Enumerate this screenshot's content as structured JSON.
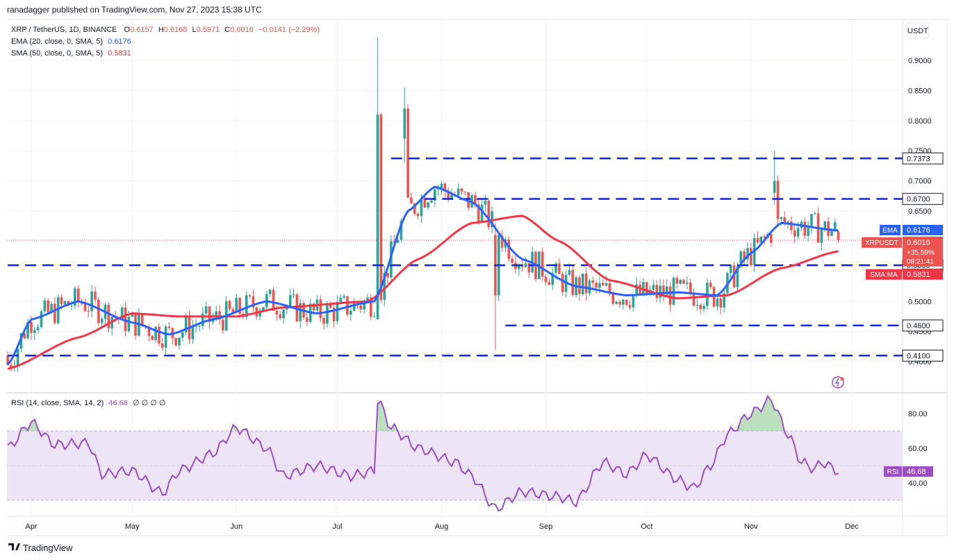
{
  "header": {
    "publisher_line": "ranadagger published on TradingView.com, Nov 27, 2023 15:38 UTC"
  },
  "legend": {
    "symbol": "XRP / TetherUS, 1D, BINANCE",
    "o_label": "O",
    "o_value": "0.6157",
    "h_label": "H",
    "h_value": "0.6168",
    "l_label": "L",
    "l_value": "0.5971",
    "c_label": "C",
    "c_value": "0.6016",
    "change": "−0.0141 (−2.29%)",
    "ema_label": "EMA (20, close, 0, SMA, 5)",
    "ema_value": "0.6176",
    "sma_label": "SMA (50, close, 0, SMA, 5)",
    "sma_value": "0.5831",
    "rsi_label": "RSI (14, close, SMA, 14, 2)",
    "rsi_value": "46.68",
    "rsi_extra": "∅ ∅ ∅ ∅"
  },
  "currency_button": "USDT",
  "footer_logo": "TradingView",
  "badges": {
    "ema_tag": "EMA",
    "ema_value": "0.6176",
    "price_tag": "XRPUSDT",
    "price_value": "0.6016",
    "price_change": "+35.59%",
    "countdown": "08:21:41",
    "sma_tag": "SMA:MA",
    "sma_value": "0.5831",
    "rsi_tag": "RSI",
    "rsi_value": "46.68"
  },
  "colors": {
    "up": "#26a69a",
    "down": "#ef5350",
    "ema": "#2962ff",
    "sma": "#f23645",
    "rsi": "#9c4dc4",
    "levels": "#1023e8",
    "rsi_band": "#ede4f5"
  },
  "chart_data": [
    {
      "type": "candlestick",
      "title": "XRP / TetherUS, 1D, BINANCE",
      "x_ticks": [
        "Apr",
        "May",
        "Jun",
        "Jul",
        "Aug",
        "Sep",
        "Oct",
        "Nov",
        "Dec"
      ],
      "y_ticks": [
        "0.9000",
        "0.8500",
        "0.8000",
        "0.7500",
        "0.7000",
        "0.6500",
        "0.6000",
        "0.5500",
        "0.5000",
        "0.4500",
        "0.4000"
      ],
      "ylim": [
        0.39,
        0.93
      ],
      "horizontal_levels": [
        {
          "value": 0.7373,
          "label": "0.7373"
        },
        {
          "value": 0.67,
          "label": "0.6700"
        },
        {
          "value": 0.56,
          "label": "0.5600"
        },
        {
          "value": 0.46,
          "label": "0.4600"
        },
        {
          "value": 0.41,
          "label": "0.4100"
        }
      ],
      "last_price": 0.6016,
      "ema20": [
        {
          "date": "Mar 25",
          "value": 0.395
        },
        {
          "date": "Apr 1",
          "value": 0.47
        },
        {
          "date": "Apr 15",
          "value": 0.5
        },
        {
          "date": "May 1",
          "value": 0.465
        },
        {
          "date": "May 12",
          "value": 0.445
        },
        {
          "date": "May 25",
          "value": 0.47
        },
        {
          "date": "Jun 10",
          "value": 0.5
        },
        {
          "date": "Jun 25",
          "value": 0.48
        },
        {
          "date": "Jul 12",
          "value": 0.5
        },
        {
          "date": "Jul 22",
          "value": 0.65
        },
        {
          "date": "Jul 30",
          "value": 0.69
        },
        {
          "date": "Aug 10",
          "value": 0.665
        },
        {
          "date": "Aug 25",
          "value": 0.57
        },
        {
          "date": "Sep 10",
          "value": 0.525
        },
        {
          "date": "Sep 25",
          "value": 0.51
        },
        {
          "date": "Oct 10",
          "value": 0.515
        },
        {
          "date": "Oct 22",
          "value": 0.51
        },
        {
          "date": "Nov 1",
          "value": 0.58
        },
        {
          "date": "Nov 10",
          "value": 0.63
        },
        {
          "date": "Nov 27",
          "value": 0.6176
        }
      ],
      "sma50": [
        {
          "date": "Mar 25",
          "value": 0.388
        },
        {
          "date": "Apr 15",
          "value": 0.44
        },
        {
          "date": "May 1",
          "value": 0.48
        },
        {
          "date": "May 15",
          "value": 0.475
        },
        {
          "date": "Jun 1",
          "value": 0.475
        },
        {
          "date": "Jun 15",
          "value": 0.49
        },
        {
          "date": "Jul 10",
          "value": 0.5
        },
        {
          "date": "Jul 25",
          "value": 0.57
        },
        {
          "date": "Aug 10",
          "value": 0.63
        },
        {
          "date": "Aug 25",
          "value": 0.642
        },
        {
          "date": "Sep 5",
          "value": 0.6
        },
        {
          "date": "Sep 20",
          "value": 0.535
        },
        {
          "date": "Oct 10",
          "value": 0.505
        },
        {
          "date": "Oct 25",
          "value": 0.51
        },
        {
          "date": "Nov 10",
          "value": 0.555
        },
        {
          "date": "Nov 27",
          "value": 0.5831
        }
      ],
      "notable_candles": [
        {
          "date": "Jul 13",
          "open": 0.47,
          "high": 0.938,
          "low": 0.47,
          "close": 0.81
        },
        {
          "date": "Jul 21",
          "open": 0.77,
          "high": 0.855,
          "low": 0.73,
          "close": 0.82
        },
        {
          "date": "Aug 17",
          "open": 0.61,
          "high": 0.63,
          "low": 0.42,
          "close": 0.51
        },
        {
          "date": "Nov 8",
          "open": 0.68,
          "high": 0.75,
          "low": 0.66,
          "close": 0.7
        }
      ]
    },
    {
      "type": "line",
      "title": "RSI (14, close, SMA, 14, 2)",
      "y_ticks": [
        "80.00",
        "60.00",
        "40.00"
      ],
      "ylim": [
        20,
        91
      ],
      "band": [
        30,
        70
      ],
      "midline": 50,
      "points": [
        {
          "date": "Mar 25",
          "value": 60
        },
        {
          "date": "Apr 1",
          "value": 75
        },
        {
          "date": "Apr 8",
          "value": 62
        },
        {
          "date": "Apr 18",
          "value": 63
        },
        {
          "date": "Apr 22",
          "value": 45
        },
        {
          "date": "May 1",
          "value": 47
        },
        {
          "date": "May 10",
          "value": 34
        },
        {
          "date": "May 15",
          "value": 47
        },
        {
          "date": "May 25",
          "value": 57
        },
        {
          "date": "Jun 1",
          "value": 72
        },
        {
          "date": "Jun 10",
          "value": 60
        },
        {
          "date": "Jun 15",
          "value": 44
        },
        {
          "date": "Jun 25",
          "value": 50
        },
        {
          "date": "Jul 5",
          "value": 44
        },
        {
          "date": "Jul 12",
          "value": 47
        },
        {
          "date": "Jul 13",
          "value": 88
        },
        {
          "date": "Jul 17",
          "value": 72
        },
        {
          "date": "Jul 25",
          "value": 60
        },
        {
          "date": "Aug 5",
          "value": 52
        },
        {
          "date": "Aug 10",
          "value": 44
        },
        {
          "date": "Aug 17",
          "value": 25
        },
        {
          "date": "Aug 25",
          "value": 35
        },
        {
          "date": "Sep 5",
          "value": 32
        },
        {
          "date": "Sep 10",
          "value": 29
        },
        {
          "date": "Sep 18",
          "value": 52
        },
        {
          "date": "Sep 25",
          "value": 45
        },
        {
          "date": "Oct 1",
          "value": 56
        },
        {
          "date": "Oct 10",
          "value": 42
        },
        {
          "date": "Oct 15",
          "value": 37
        },
        {
          "date": "Oct 20",
          "value": 50
        },
        {
          "date": "Oct 25",
          "value": 68
        },
        {
          "date": "Nov 1",
          "value": 80
        },
        {
          "date": "Nov 7",
          "value": 88
        },
        {
          "date": "Nov 12",
          "value": 68
        },
        {
          "date": "Nov 16",
          "value": 52
        },
        {
          "date": "Nov 20",
          "value": 48
        },
        {
          "date": "Nov 22",
          "value": 52
        },
        {
          "date": "Nov 27",
          "value": 46.68
        }
      ]
    }
  ]
}
